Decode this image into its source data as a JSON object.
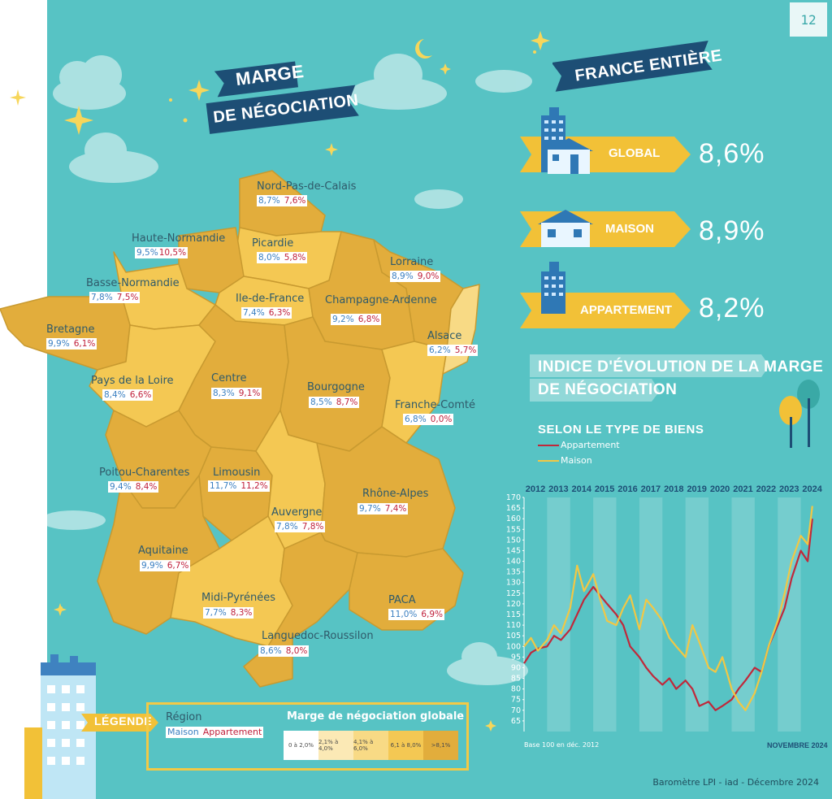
{
  "page_number": "12",
  "title_banner": {
    "line1": "MARGE",
    "line2": "DE NÉGOCIATION"
  },
  "france": {
    "banner": "FRANCE ENTIÈRE",
    "stats": [
      {
        "label": "GLOBAL",
        "value": "8,6%"
      },
      {
        "label": "MAISON",
        "value": "8,9%"
      },
      {
        "label": "APPARTEMENT",
        "value": "8,2%"
      }
    ]
  },
  "regions": [
    {
      "name": "Nord-Pas-de-Calais",
      "maison": "8,7%",
      "appartement": "7,6%"
    },
    {
      "name": "Haute-Normandie",
      "maison": "9,5%",
      "appartement": "10,5%"
    },
    {
      "name": "Picardie",
      "maison": "8,0%",
      "appartement": "5,8%"
    },
    {
      "name": "Lorraine",
      "maison": "8,9%",
      "appartement": "9,0%"
    },
    {
      "name": "Basse-Normandie",
      "maison": "7,8%",
      "appartement": "7,5%"
    },
    {
      "name": "Ile-de-France",
      "maison": "7,4%",
      "appartement": "6,3%"
    },
    {
      "name": "Champagne-Ardenne",
      "maison": "9,2%",
      "appartement": "6,8%"
    },
    {
      "name": "Bretagne",
      "maison": "9,9%",
      "appartement": "6,1%"
    },
    {
      "name": "Alsace",
      "maison": "6,2%",
      "appartement": "5,7%"
    },
    {
      "name": "Pays de la Loire",
      "maison": "8,4%",
      "appartement": "6,6%"
    },
    {
      "name": "Centre",
      "maison": "8,3%",
      "appartement": "9,1%"
    },
    {
      "name": "Bourgogne",
      "maison": "8,5%",
      "appartement": "8,7%"
    },
    {
      "name": "Franche-Comté",
      "maison": "6,8%",
      "appartement": "0,0%"
    },
    {
      "name": "Poitou-Charentes",
      "maison": "9,4%",
      "appartement": "8,4%"
    },
    {
      "name": "Limousin",
      "maison": "11,7%",
      "appartement": "11,2%"
    },
    {
      "name": "Rhône-Alpes",
      "maison": "9,7%",
      "appartement": "7,4%"
    },
    {
      "name": "Auvergne",
      "maison": "7,8%",
      "appartement": "7,8%"
    },
    {
      "name": "Aquitaine",
      "maison": "9,9%",
      "appartement": "6,7%"
    },
    {
      "name": "Midi-Pyrénées",
      "maison": "7,7%",
      "appartement": "8,3%"
    },
    {
      "name": "PACA",
      "maison": "11,0%",
      "appartement": "6,9%"
    },
    {
      "name": "Languedoc-Roussilon",
      "maison": "8,6%",
      "appartement": "8,0%"
    }
  ],
  "legend": {
    "banner": "LÉGENDE",
    "region_label": "Région",
    "maison_label": "Maison",
    "appartement_label": "Appartement",
    "scale_title": "Marge de négociation globale",
    "scale": [
      {
        "label": "0 à 2,0%",
        "color": "#ffffff"
      },
      {
        "label": "2,1% à 4,0%",
        "color": "#fbe9b5"
      },
      {
        "label": "4,1% à 6,0%",
        "color": "#f8da85"
      },
      {
        "label": "6,1 à 8,0%",
        "color": "#f4c853"
      },
      {
        "label": ">8,1%",
        "color": "#e2ad3c"
      }
    ]
  },
  "chart_title": {
    "line1": "INDICE D'ÉVOLUTION DE LA MARGE",
    "line2": "DE NÉGOCIATION"
  },
  "chart_data": {
    "type": "line",
    "subtitle": "SELON LE TYPE DE BIENS",
    "x_ticks": [
      "2012",
      "2013",
      "2014",
      "2015",
      "2016",
      "2017",
      "2018",
      "2019",
      "2020",
      "2021",
      "2022",
      "2023",
      "2024"
    ],
    "y_ticks": [
      170,
      165,
      160,
      155,
      150,
      145,
      140,
      135,
      130,
      125,
      120,
      115,
      110,
      105,
      100,
      95,
      90,
      85,
      80,
      75,
      70,
      65
    ],
    "xlim": [
      2012,
      2025
    ],
    "ylim": [
      60,
      170
    ],
    "note": "Base 100 en déc. 2012",
    "date": "NOVEMBRE 2024",
    "series": [
      {
        "name": "Appartement",
        "color": "#c0283a",
        "x": [
          2012.0,
          2012.3,
          2012.6,
          2013.0,
          2013.3,
          2013.6,
          2014.0,
          2014.3,
          2014.6,
          2015.0,
          2015.3,
          2015.6,
          2016.0,
          2016.3,
          2016.6,
          2017.0,
          2017.3,
          2017.6,
          2018.0,
          2018.3,
          2018.6,
          2019.0,
          2019.3,
          2019.6,
          2020.0,
          2020.3,
          2020.6,
          2021.0,
          2021.3,
          2021.6,
          2022.0,
          2022.3,
          2022.6,
          2023.0,
          2023.3,
          2023.6,
          2024.0,
          2024.3,
          2024.5
        ],
        "y": [
          92,
          97,
          99,
          100,
          105,
          103,
          108,
          115,
          122,
          128,
          124,
          120,
          115,
          110,
          100,
          95,
          90,
          86,
          82,
          85,
          80,
          84,
          80,
          72,
          74,
          70,
          72,
          75,
          80,
          84,
          90,
          88,
          100,
          110,
          118,
          132,
          145,
          140,
          160
        ]
      },
      {
        "name": "Maison",
        "color": "#f2c744",
        "x": [
          2012.0,
          2012.3,
          2012.6,
          2013.0,
          2013.3,
          2013.6,
          2014.0,
          2014.3,
          2014.6,
          2015.0,
          2015.3,
          2015.6,
          2016.0,
          2016.3,
          2016.6,
          2017.0,
          2017.3,
          2017.6,
          2018.0,
          2018.3,
          2018.6,
          2019.0,
          2019.3,
          2019.6,
          2020.0,
          2020.3,
          2020.6,
          2021.0,
          2021.3,
          2021.6,
          2022.0,
          2022.3,
          2022.6,
          2023.0,
          2023.3,
          2023.6,
          2024.0,
          2024.3,
          2024.5
        ],
        "y": [
          100,
          104,
          98,
          103,
          110,
          106,
          118,
          138,
          126,
          134,
          122,
          112,
          110,
          118,
          124,
          108,
          122,
          118,
          112,
          104,
          100,
          95,
          110,
          102,
          90,
          88,
          95,
          80,
          74,
          70,
          78,
          88,
          100,
          112,
          125,
          140,
          152,
          148,
          166
        ]
      }
    ]
  }
}
